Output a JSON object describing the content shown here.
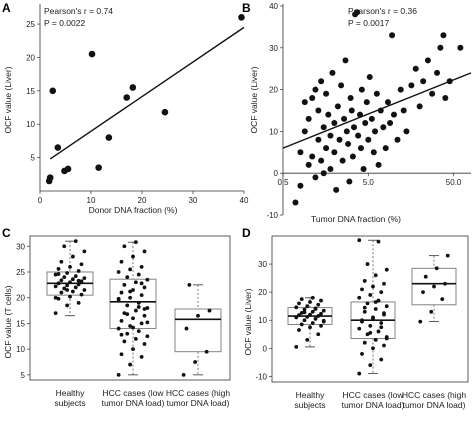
{
  "panels": {
    "A": {
      "letter": "A"
    },
    "B": {
      "letter": "B"
    },
    "C": {
      "letter": "C"
    },
    "D": {
      "letter": "D"
    }
  },
  "chart_data": [
    {
      "panel": "A",
      "type": "scatter",
      "xlabel": "Donor DNA fraction (%)",
      "ylabel": "OCF value (Liver)",
      "xlim": [
        0,
        40
      ],
      "ylim": [
        0,
        28
      ],
      "xticks": [
        0,
        10,
        20,
        30,
        40
      ],
      "yticks": [
        5,
        10,
        15,
        20,
        25
      ],
      "annotations": [
        "Pearson's r = 0.74",
        "P = 0.0022"
      ],
      "points": [
        {
          "x": 1.8,
          "y": 1.5
        },
        {
          "x": 2.0,
          "y": 2.0
        },
        {
          "x": 2.5,
          "y": 15.0
        },
        {
          "x": 3.5,
          "y": 6.5
        },
        {
          "x": 4.8,
          "y": 3.0
        },
        {
          "x": 5.5,
          "y": 3.3
        },
        {
          "x": 10.2,
          "y": 20.5
        },
        {
          "x": 11.5,
          "y": 3.5
        },
        {
          "x": 13.5,
          "y": 8.0
        },
        {
          "x": 17.0,
          "y": 14.0
        },
        {
          "x": 18.2,
          "y": 15.5
        },
        {
          "x": 24.5,
          "y": 11.8
        },
        {
          "x": 39.5,
          "y": 26.0
        }
      ],
      "fit": [
        {
          "x": 2.0,
          "y": 4.8
        },
        {
          "x": 40.0,
          "y": 24.5
        }
      ]
    },
    {
      "panel": "B",
      "type": "scatter",
      "xlabel": "Tumor DNA fraction (%)",
      "ylabel": "OCF value (Liver)",
      "xscale": "log",
      "xlim": [
        0.5,
        80
      ],
      "ylim": [
        -10,
        40
      ],
      "xticks": [
        0.5,
        5.0,
        50.0
      ],
      "yticks": [
        -10,
        0,
        10,
        20,
        30,
        40
      ],
      "annotations": [
        "Pearson's r = 0.36",
        "P = 0.0017"
      ],
      "points": [
        {
          "x": 0.7,
          "y": -7
        },
        {
          "x": 0.8,
          "y": -3
        },
        {
          "x": 0.8,
          "y": 5
        },
        {
          "x": 0.9,
          "y": 17
        },
        {
          "x": 0.9,
          "y": 10
        },
        {
          "x": 1.0,
          "y": 2
        },
        {
          "x": 1.0,
          "y": 13
        },
        {
          "x": 1.1,
          "y": 4
        },
        {
          "x": 1.1,
          "y": 18
        },
        {
          "x": 1.2,
          "y": 20
        },
        {
          "x": 1.2,
          "y": -1
        },
        {
          "x": 1.3,
          "y": 8
        },
        {
          "x": 1.3,
          "y": 15
        },
        {
          "x": 1.4,
          "y": 3
        },
        {
          "x": 1.4,
          "y": 22
        },
        {
          "x": 1.5,
          "y": 11
        },
        {
          "x": 1.5,
          "y": 0
        },
        {
          "x": 1.6,
          "y": 6
        },
        {
          "x": 1.6,
          "y": 19
        },
        {
          "x": 1.7,
          "y": 14
        },
        {
          "x": 1.8,
          "y": 9
        },
        {
          "x": 1.8,
          "y": 1
        },
        {
          "x": 1.9,
          "y": 24
        },
        {
          "x": 2.0,
          "y": 12
        },
        {
          "x": 2.0,
          "y": 5
        },
        {
          "x": 2.1,
          "y": -4
        },
        {
          "x": 2.2,
          "y": 16
        },
        {
          "x": 2.3,
          "y": 8
        },
        {
          "x": 2.4,
          "y": 21
        },
        {
          "x": 2.5,
          "y": 3
        },
        {
          "x": 2.6,
          "y": 13
        },
        {
          "x": 2.7,
          "y": 27
        },
        {
          "x": 2.8,
          "y": 10
        },
        {
          "x": 2.9,
          "y": 7
        },
        {
          "x": 3.0,
          "y": -2
        },
        {
          "x": 3.1,
          "y": 18
        },
        {
          "x": 3.2,
          "y": 15
        },
        {
          "x": 3.3,
          "y": 4
        },
        {
          "x": 3.4,
          "y": 11
        },
        {
          "x": 3.5,
          "y": 38
        },
        {
          "x": 3.7,
          "y": 38.5
        },
        {
          "x": 3.8,
          "y": 9
        },
        {
          "x": 4.0,
          "y": 14
        },
        {
          "x": 4.1,
          "y": 6
        },
        {
          "x": 4.2,
          "y": 20
        },
        {
          "x": 4.4,
          "y": 1
        },
        {
          "x": 4.6,
          "y": 12
        },
        {
          "x": 4.8,
          "y": 17
        },
        {
          "x": 5.0,
          "y": 8
        },
        {
          "x": 5.2,
          "y": 23
        },
        {
          "x": 5.5,
          "y": 13
        },
        {
          "x": 5.8,
          "y": 5
        },
        {
          "x": 6.0,
          "y": 10
        },
        {
          "x": 6.3,
          "y": 19
        },
        {
          "x": 6.6,
          "y": 2
        },
        {
          "x": 7.0,
          "y": 15
        },
        {
          "x": 7.5,
          "y": 11
        },
        {
          "x": 8.0,
          "y": 6
        },
        {
          "x": 8.5,
          "y": 17
        },
        {
          "x": 9.0,
          "y": 12
        },
        {
          "x": 9.5,
          "y": 33
        },
        {
          "x": 10.0,
          "y": 14
        },
        {
          "x": 11.0,
          "y": 8
        },
        {
          "x": 12.0,
          "y": 20
        },
        {
          "x": 13.0,
          "y": 15
        },
        {
          "x": 14.0,
          "y": 10
        },
        {
          "x": 16.0,
          "y": 21
        },
        {
          "x": 18.0,
          "y": 25
        },
        {
          "x": 20.0,
          "y": 16
        },
        {
          "x": 22.0,
          "y": 22
        },
        {
          "x": 25.0,
          "y": 27
        },
        {
          "x": 28.0,
          "y": 19
        },
        {
          "x": 32.0,
          "y": 24
        },
        {
          "x": 35.0,
          "y": 30
        },
        {
          "x": 38.0,
          "y": 33
        },
        {
          "x": 40.0,
          "y": 18
        },
        {
          "x": 45.0,
          "y": 22
        },
        {
          "x": 60.0,
          "y": 30
        }
      ],
      "fit": [
        {
          "x": 0.5,
          "y": 6
        },
        {
          "x": 80,
          "y": 24
        }
      ]
    },
    {
      "panel": "C",
      "type": "box",
      "ylabel": "OCF value (T cells)",
      "ylim": [
        4,
        32
      ],
      "yticks": [
        5,
        10,
        15,
        20,
        25,
        30
      ],
      "categories": [
        "Healthy\nsubjects",
        "HCC cases (low\ntumor DNA load)",
        "HCC cases (high\ntumor DNA load)"
      ],
      "boxes": [
        {
          "whisker_low": 16.5,
          "q1": 20.5,
          "median": 22.8,
          "q3": 25.0,
          "whisker_high": 31.0
        },
        {
          "whisker_low": 5.0,
          "q1": 14.0,
          "median": 19.2,
          "q3": 23.6,
          "whisker_high": 30.8
        },
        {
          "whisker_low": 5.0,
          "q1": 9.5,
          "median": 15.8,
          "q3": 17.8,
          "whisker_high": 22.5
        }
      ],
      "points": [
        [
          17.0,
          18.5,
          19.0,
          19.8,
          20.2,
          20.6,
          21.0,
          21.2,
          21.5,
          21.8,
          22.0,
          22.2,
          22.4,
          22.6,
          22.8,
          23.0,
          23.2,
          23.4,
          23.6,
          23.8,
          24.0,
          24.2,
          24.5,
          24.8,
          25.2,
          25.6,
          26.0,
          26.5,
          27.0,
          28.0,
          29.0,
          30.0,
          31.0,
          20.0,
          21.5,
          23.3,
          24.6
        ],
        [
          5.0,
          7.0,
          8.5,
          9.0,
          10.0,
          11.0,
          11.5,
          12.0,
          12.5,
          13.0,
          13.5,
          14.0,
          14.5,
          15.0,
          15.5,
          16.0,
          16.5,
          17.0,
          17.5,
          18.0,
          18.5,
          19.0,
          19.5,
          20.0,
          20.5,
          21.0,
          21.5,
          22.0,
          22.5,
          23.0,
          23.5,
          24.0,
          24.5,
          25.0,
          25.5,
          26.0,
          27.0,
          28.0,
          29.0,
          30.0,
          30.8,
          15.2,
          16.8,
          18.2,
          19.8,
          21.2,
          22.8,
          12.8,
          14.2,
          17.8
        ],
        [
          5.0,
          7.5,
          9.5,
          14.0,
          16.5,
          17.5,
          22.5
        ]
      ]
    },
    {
      "panel": "D",
      "type": "box",
      "ylabel": "OCF value (Liver)",
      "ylim": [
        -12,
        40
      ],
      "yticks": [
        -10,
        0,
        10,
        20,
        30
      ],
      "categories": [
        "Healthy\nsubjects",
        "HCC cases (low\ntumor DNA load)",
        "HCC cases (high\ntumor DNA load)"
      ],
      "boxes": [
        {
          "whisker_low": 0.5,
          "q1": 8.5,
          "median": 11.5,
          "q3": 14.5,
          "whisker_high": 18.0
        },
        {
          "whisker_low": -9.0,
          "q1": 3.5,
          "median": 10.0,
          "q3": 16.5,
          "whisker_high": 38.5
        },
        {
          "whisker_low": 9.5,
          "q1": 15.5,
          "median": 23.0,
          "q3": 28.5,
          "whisker_high": 33.0
        }
      ],
      "points": [
        [
          0.5,
          3.0,
          5.0,
          6.5,
          7.5,
          8.0,
          8.5,
          9.0,
          9.5,
          10.0,
          10.5,
          11.0,
          11.2,
          11.5,
          11.8,
          12.0,
          12.3,
          12.6,
          13.0,
          13.4,
          13.8,
          14.2,
          14.6,
          15.0,
          15.5,
          16.0,
          16.5,
          17.0,
          17.5,
          18.0,
          9.8,
          12.8,
          14.0
        ],
        [
          -9.0,
          -6.0,
          -4.0,
          -2.0,
          0.0,
          1.0,
          2.0,
          3.0,
          4.0,
          5.0,
          6.0,
          7.0,
          8.0,
          9.0,
          10.0,
          11.0,
          12.0,
          13.0,
          14.0,
          15.0,
          16.0,
          17.0,
          18.0,
          19.0,
          20.0,
          21.0,
          22.0,
          23.0,
          24.0,
          26.0,
          28.0,
          30.0,
          38.0,
          38.5,
          5.5,
          7.5,
          9.5,
          10.5,
          12.5,
          14.5,
          16.5,
          3.5
        ],
        [
          9.5,
          13.0,
          17.5,
          20.0,
          22.0,
          23.0,
          25.5,
          28.5,
          33.0
        ]
      ]
    }
  ]
}
